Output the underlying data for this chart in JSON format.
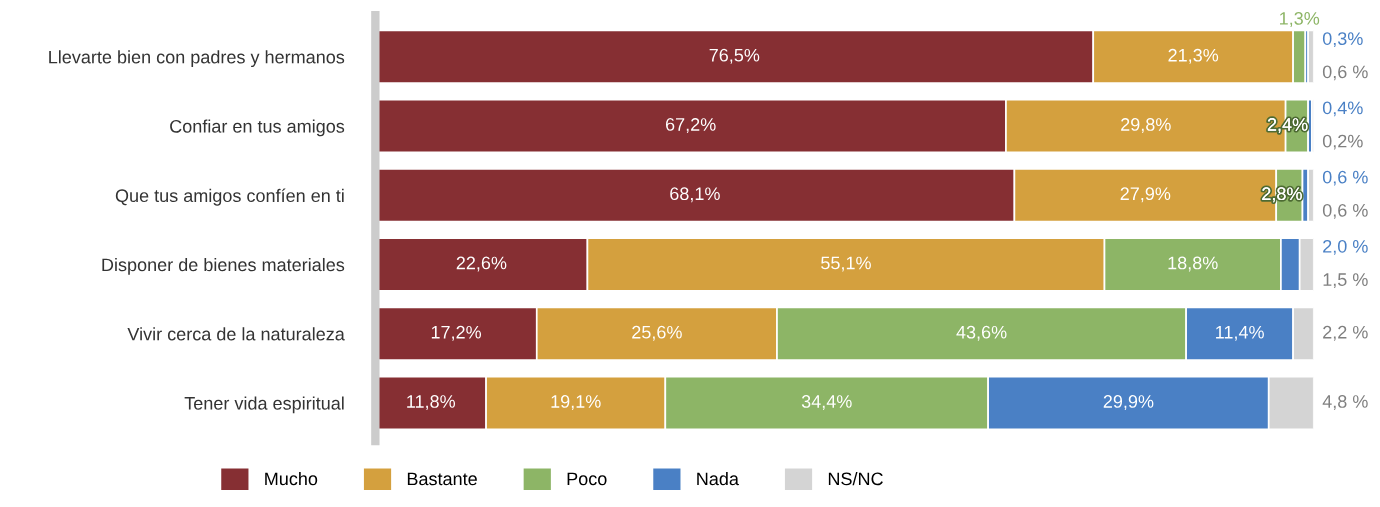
{
  "chart_data": {
    "type": "bar",
    "orientation": "horizontal",
    "stacked": true,
    "categories": [
      "Llevarte bien con padres y hermanos",
      "Confiar en tus amigos",
      "Que tus amigos confíen en ti",
      "Disponer de bienes materiales",
      "Vivir cerca de la naturaleza",
      "Tener vida espiritual"
    ],
    "series": [
      {
        "name": "Mucho",
        "color": "#862f33",
        "values": [
          76.5,
          67.2,
          68.1,
          22.6,
          17.2,
          11.8
        ],
        "value_labels": [
          "76,5%",
          "67,2%",
          "68,1%",
          "22,6%",
          "17,2%",
          "11,8%"
        ]
      },
      {
        "name": "Bastante",
        "color": "#d4a03e",
        "values": [
          21.3,
          29.8,
          27.9,
          55.1,
          25.6,
          19.1
        ],
        "value_labels": [
          "21,3%",
          "29,8%",
          "27,9%",
          "55,1%",
          "25,6%",
          "19,1%"
        ]
      },
      {
        "name": "Poco",
        "color": "#8db566",
        "values": [
          1.3,
          2.4,
          2.8,
          18.8,
          43.6,
          34.4
        ],
        "value_labels": [
          "1,3%",
          "2,4%",
          "2,8%",
          "18,8%",
          "43,6%",
          "34,4%"
        ]
      },
      {
        "name": "Nada",
        "color": "#4a80c5",
        "values": [
          0.3,
          0.4,
          0.6,
          2.0,
          11.4,
          29.9
        ],
        "value_labels": [
          "0,3%",
          "0,4%",
          "0,6 %",
          "2,0 %",
          "11,4%",
          "29,9%"
        ]
      },
      {
        "name": "NS/NC",
        "color": "#d4d4d4",
        "values": [
          0.6,
          0.2,
          0.6,
          1.5,
          2.2,
          4.8
        ],
        "value_labels": [
          "0,6 %",
          "0,2%",
          "0,6 %",
          "1,5 %",
          "2,2 %",
          "4,8 %"
        ]
      }
    ],
    "xlim": [
      0,
      100
    ],
    "tick_labels": "y",
    "grid": false,
    "legend": "bottom"
  }
}
